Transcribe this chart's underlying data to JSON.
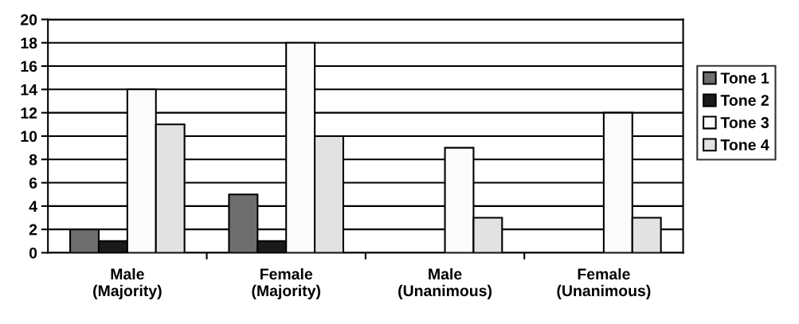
{
  "chart_data": {
    "type": "bar",
    "categories": [
      "Male\n(Majority)",
      "Female\n(Majority)",
      "Male\n(Unanimous)",
      "Female\n(Unanimous)"
    ],
    "series": [
      {
        "name": "Tone 1",
        "color": "#6e6e6e",
        "values": [
          2,
          5,
          null,
          null
        ]
      },
      {
        "name": "Tone 2",
        "color": "#1a1a1a",
        "values": [
          1,
          1,
          null,
          null
        ]
      },
      {
        "name": "Tone 3",
        "color": "#fbfbfb",
        "values": [
          14,
          18,
          9,
          12
        ]
      },
      {
        "name": "Tone 4",
        "color": "#e2e2e2",
        "values": [
          11,
          10,
          3,
          3
        ]
      }
    ],
    "ylim": [
      0,
      20
    ],
    "yticks": [
      0,
      2,
      4,
      6,
      8,
      10,
      12,
      14,
      16,
      18,
      20
    ],
    "grid": "y",
    "legend": "right"
  }
}
